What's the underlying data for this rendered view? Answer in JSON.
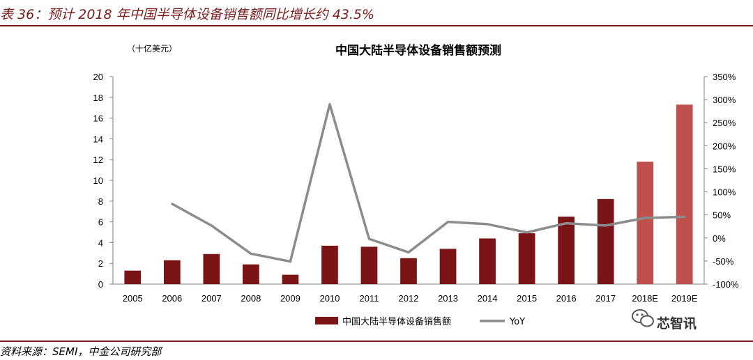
{
  "header": {
    "title": "表 36：预计 2018 年中国半导体设备销售额同比增长约 43.5%",
    "source": "资料来源：SEMI，中金公司研究部"
  },
  "watermark": {
    "text": "芯智讯",
    "icon": "wechat-icon"
  },
  "colors": {
    "rule": "#7a1c1c",
    "bar": "#7b1416",
    "bar_forecast": "#c0504d",
    "line": "#8c8c8c"
  },
  "chart_data": {
    "type": "bar",
    "title": "中国大陆半导体设备销售额预测",
    "unit": "（十亿美元）",
    "categories": [
      "2005",
      "2006",
      "2007",
      "2008",
      "2009",
      "2010",
      "2011",
      "2012",
      "2013",
      "2014",
      "2015",
      "2016",
      "2017",
      "2018E",
      "2019E"
    ],
    "forecast_categories": [
      "2018E",
      "2019E"
    ],
    "series": [
      {
        "name": "中国大陆半导体设备销售额",
        "kind": "bar",
        "axis": "left",
        "values": [
          1.3,
          2.3,
          2.9,
          1.9,
          0.9,
          3.7,
          3.6,
          2.5,
          3.4,
          4.4,
          4.9,
          6.5,
          8.2,
          11.8,
          17.3
        ]
      },
      {
        "name": "YoY",
        "kind": "line",
        "axis": "right",
        "values": [
          null,
          74,
          27,
          -34,
          -51,
          290,
          -2,
          -31,
          35,
          30,
          12,
          32,
          27,
          43.5,
          46
        ]
      }
    ],
    "y_left": {
      "min": 0,
      "max": 20,
      "step": 2,
      "ticks": [
        "0",
        "2",
        "4",
        "6",
        "8",
        "10",
        "12",
        "14",
        "16",
        "18",
        "20"
      ]
    },
    "y_right": {
      "min": -100,
      "max": 350,
      "step": 50,
      "ticks": [
        "-100%",
        "-50%",
        "0%",
        "50%",
        "100%",
        "150%",
        "200%",
        "250%",
        "300%",
        "350%"
      ]
    },
    "legend": [
      "中国大陆半导体设备销售额",
      "YoY"
    ],
    "legend_position": "bottom",
    "grid": false
  }
}
